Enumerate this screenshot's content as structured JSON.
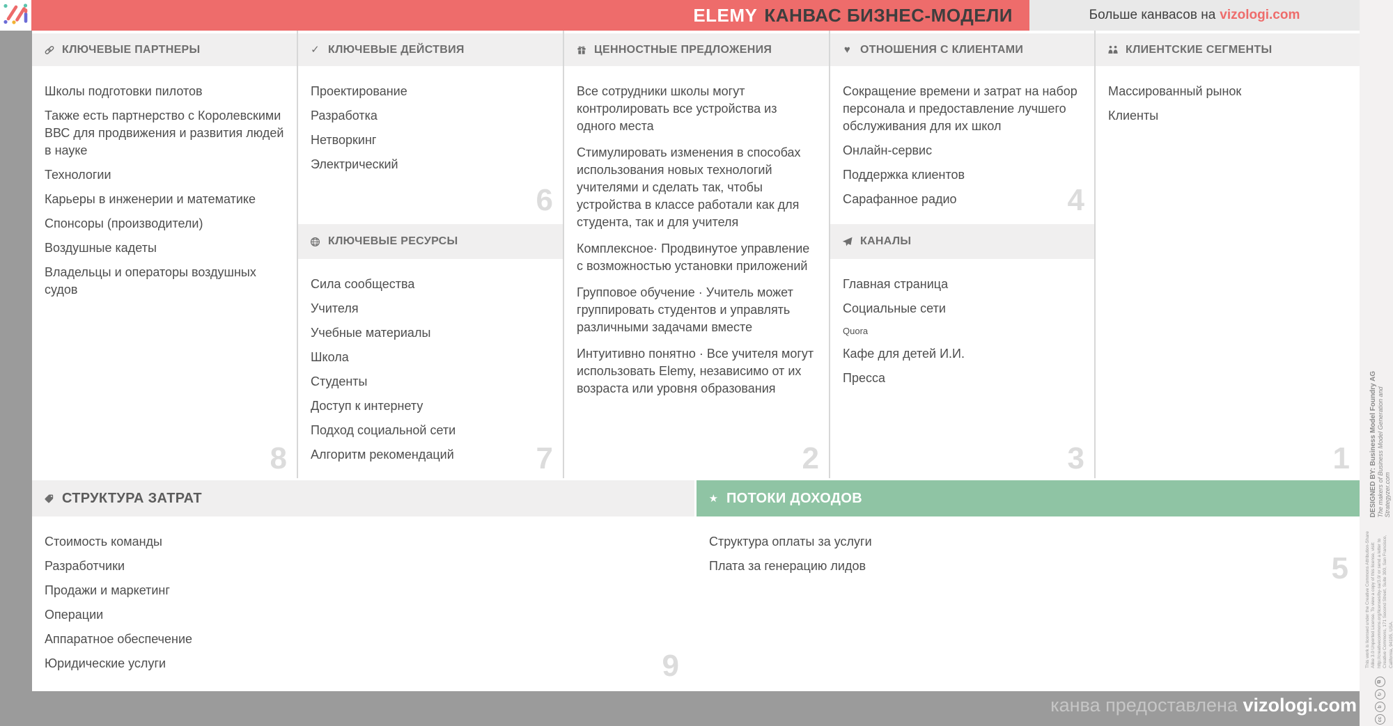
{
  "colors": {
    "accent_red": "#ee6c6b",
    "accent_green": "#8fc4a4",
    "band_gray": "#f0efef",
    "page_gray": "#9b9b9b"
  },
  "header": {
    "brand": "ELEMY",
    "title": "КАНВАС БИЗНЕС-МОДЕЛИ",
    "promo_text": "Больше канвасов на",
    "promo_link": "vizologi.com"
  },
  "footer": {
    "prefix": "канва предоставлена",
    "link": "vizologi.com"
  },
  "license": {
    "designed_by": "DESIGNED BY: Business Model Foundry AG",
    "tagline": "The makers of Business Model Generation and Strategyzer.com",
    "cc_text": "This work is licensed under the Creative Commons Attribution-Share Alike 3.0 Unported License. To view a copy of this license, visit: http://creativecommons.org/licenses/by-sa/3.0/ or send a letter to Creative Commons, 171 Second Street, Suite 300, San Francisco, California, 94105, USA.",
    "cc_icon_labels": [
      "cc",
      "by",
      "sa",
      "in"
    ]
  },
  "logo_icon": "vizologi-logo",
  "blocks": {
    "key_partners": {
      "title": "КЛЮЧЕВЫЕ ПАРТНЕРЫ",
      "icon": "link-icon",
      "number": "8",
      "items": [
        "Школы подготовки пилотов",
        "Также есть партнерство с Королевскими ВВС для продвижения и развития людей в науке",
        "Технологии",
        "Карьеры в инженерии и математике",
        "Спонсоры (производители)",
        "Воздушные кадеты",
        "Владельцы и операторы воздушных судов"
      ]
    },
    "key_activities": {
      "title": "КЛЮЧЕВЫЕ ДЕЙСТВИЯ",
      "icon": "check-icon",
      "number": "6",
      "items": [
        "Проектирование",
        "Разработка",
        "Нетворкинг",
        "Электрический"
      ]
    },
    "key_resources": {
      "title": "КЛЮЧЕВЫЕ РЕСУРСЫ",
      "icon": "globe-icon",
      "number": "7",
      "items": [
        "Сила сообщества",
        "Учителя",
        "Учебные материалы",
        "Школа",
        "Студенты",
        "Доступ к интернету",
        "Подход социальной сети",
        "Алгоритм рекомендаций"
      ]
    },
    "value_propositions": {
      "title": "ЦЕННОСТНЫЕ ПРЕДЛОЖЕНИЯ",
      "icon": "gift-icon",
      "number": "2",
      "items": [
        "Все сотрудники школы могут контролировать все устройства из одного места",
        "Стимулировать изменения в способах использования новых технологий учителями и сделать так, чтобы устройства в классе работали как для студента, так и для учителя",
        "Комплексное· Продвинутое управление с возможностью установки приложений",
        "Групповое обучение · Учитель может группировать студентов и управлять различными задачами вместе",
        "Интуитивно понятно · Все учителя могут использовать Elemy, независимо от их возраста или уровня образования"
      ]
    },
    "customer_relationships": {
      "title": "ОТНОШЕНИЯ С КЛИЕНТАМИ",
      "icon": "heart-icon",
      "number": "4",
      "items": [
        "Сокращение времени и затрат на набор персонала и предоставление лучшего обслуживания для их школ",
        "Онлайн-сервис",
        "Поддержка клиентов",
        "Сарафанное радио"
      ]
    },
    "channels": {
      "title": "КАНАЛЫ",
      "icon": "paper-plane-icon",
      "number": "3",
      "items": [
        "Главная страница",
        "Социальные сети",
        {
          "text": "Quora",
          "small": true
        },
        "Кафе для детей И.И.",
        "Пресса"
      ]
    },
    "customer_segments": {
      "title": "КЛИЕНТСКИЕ СЕГМЕНТЫ",
      "icon": "people-icon",
      "number": "1",
      "items": [
        "Массированный рынок",
        "Клиенты"
      ]
    },
    "cost_structure": {
      "title": "СТРУКТУРА ЗАТРАТ",
      "icon": "tag-icon",
      "number": "9",
      "items": [
        "Стоимость команды",
        "Разработчики",
        "Продажи и маркетинг",
        "Операции",
        "Аппаратное обеспечение",
        "Юридические услуги"
      ]
    },
    "revenue_streams": {
      "title": "ПОТОКИ ДОХОДОВ",
      "icon": "star-icon",
      "number": "5",
      "items": [
        "Структура оплаты за услуги",
        "Плата за генерацию лидов"
      ]
    }
  }
}
